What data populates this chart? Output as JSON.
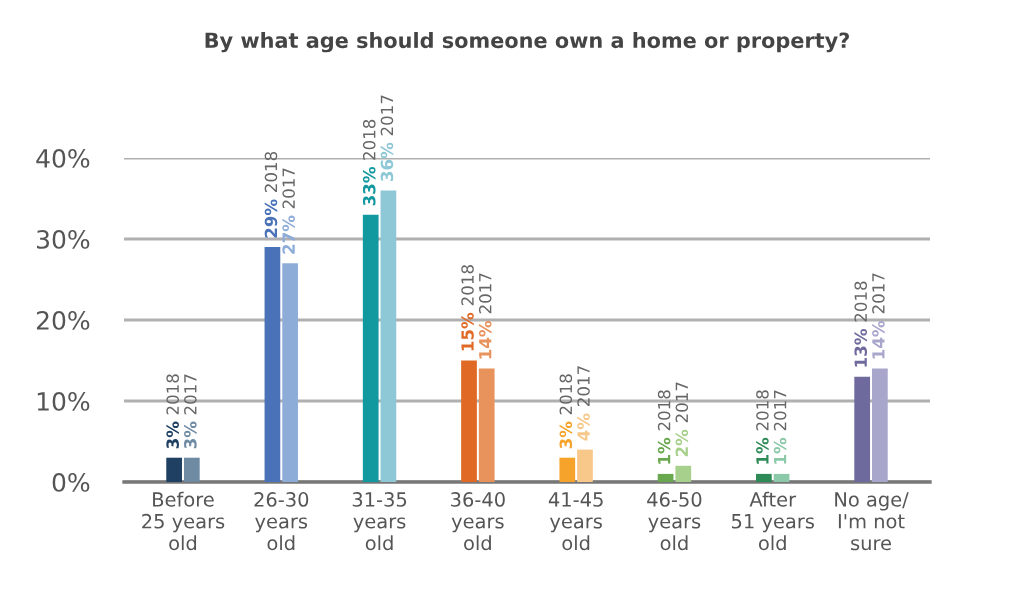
{
  "chart_data": {
    "type": "bar",
    "title": "By what age should someone own a home or property?",
    "categories": [
      "Before\n25 years\nold",
      "26-30\nyears\nold",
      "31-35\nyears\nold",
      "36-40\nyears\nold",
      "41-45\nyears\nold",
      "46-50\nyears\nold",
      "After\n51 years\nold",
      "No age/\nI'm not\nsure"
    ],
    "series": [
      {
        "name": "2018",
        "values": [
          3,
          29,
          33,
          15,
          3,
          1,
          1,
          13
        ],
        "value_labels": [
          "3%",
          "29%",
          "33%",
          "15%",
          "3%",
          "1%",
          "1%",
          "13%"
        ],
        "colors": [
          "#1f3f63",
          "#4a72b8",
          "#12999f",
          "#e06a25",
          "#f5a32a",
          "#6aa84f",
          "#2e8b57",
          "#6f6a9e"
        ]
      },
      {
        "name": "2017",
        "values": [
          3,
          27,
          36,
          14,
          4,
          2,
          1,
          14
        ],
        "value_labels": [
          "3%",
          "27%",
          "36%",
          "14%",
          "4%",
          "2%",
          "1%",
          "14%"
        ],
        "colors": [
          "#6f8aa3",
          "#8eacd8",
          "#8ec8d6",
          "#e8935c",
          "#f8c88a",
          "#a8d08d",
          "#8cc9a8",
          "#a9a6cc"
        ]
      }
    ],
    "ylim": [
      0,
      40
    ],
    "yticks": [
      {
        "value": 0,
        "label": "0%"
      },
      {
        "value": 10,
        "label": "10%"
      },
      {
        "value": 20,
        "label": "20%"
      },
      {
        "value": 30,
        "label": "30%"
      },
      {
        "value": 40,
        "label": "40%"
      }
    ],
    "grid": "y",
    "legend": false
  }
}
